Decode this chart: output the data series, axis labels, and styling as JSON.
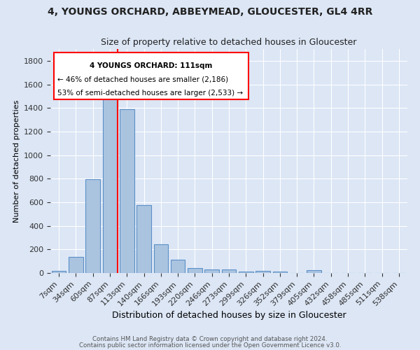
{
  "title1": "4, YOUNGS ORCHARD, ABBEYMEAD, GLOUCESTER, GL4 4RR",
  "title2": "Size of property relative to detached houses in Gloucester",
  "xlabel": "Distribution of detached houses by size in Gloucester",
  "ylabel": "Number of detached properties",
  "bar_labels": [
    "7sqm",
    "34sqm",
    "60sqm",
    "87sqm",
    "113sqm",
    "140sqm",
    "166sqm",
    "193sqm",
    "220sqm",
    "246sqm",
    "273sqm",
    "299sqm",
    "326sqm",
    "352sqm",
    "379sqm",
    "405sqm",
    "432sqm",
    "458sqm",
    "485sqm",
    "511sqm",
    "538sqm"
  ],
  "bar_values": [
    15,
    137,
    793,
    1476,
    1390,
    575,
    245,
    115,
    42,
    28,
    27,
    13,
    18,
    13,
    0,
    22,
    0,
    0,
    0,
    0,
    0
  ],
  "bar_color": "#aac4e0",
  "bar_edge_color": "#5b8fc7",
  "background_color": "#dce6f5",
  "grid_color": "#ffffff",
  "ylim": [
    0,
    1900
  ],
  "annotation_text1": "4 YOUNGS ORCHARD: 111sqm",
  "annotation_text2": "← 46% of detached houses are smaller (2,186)",
  "annotation_text3": "53% of semi-detached houses are larger (2,533) →",
  "footnote1": "Contains HM Land Registry data © Crown copyright and database right 2024.",
  "footnote2": "Contains public sector information licensed under the Open Government Licence v3.0."
}
